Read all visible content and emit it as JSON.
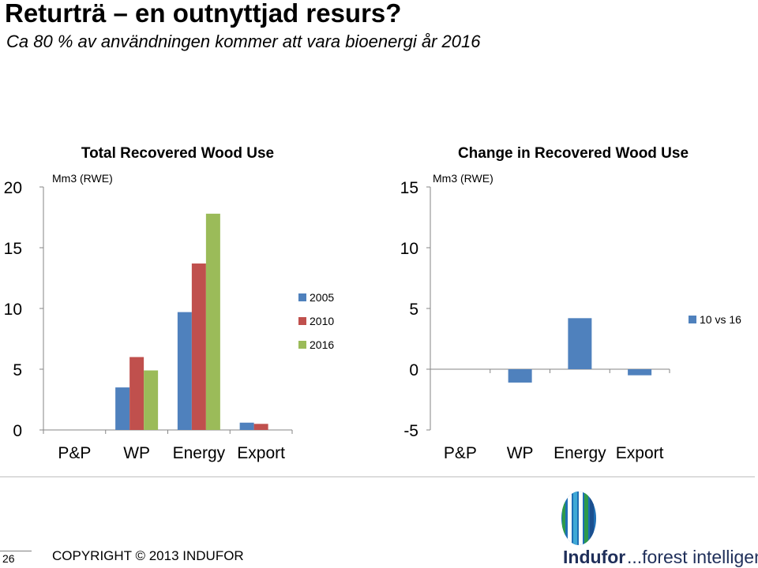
{
  "page": {
    "title": "Returträ – en outnyttjad resurs?",
    "subtitle": "Ca 80 % av användningen kommer att vara bioenergi år 2016"
  },
  "chart_data": [
    {
      "type": "bar",
      "title": "Total Recovered Wood Use",
      "unit_label": "Mm3 (RWE)",
      "categories": [
        "P&P",
        "WP",
        "Energy",
        "Export"
      ],
      "series": [
        {
          "name": "2005",
          "color": "#4f81bd",
          "values": [
            0,
            3.5,
            9.7,
            0.6
          ]
        },
        {
          "name": "2010",
          "color": "#c0504d",
          "values": [
            0,
            6.0,
            13.7,
            0.5
          ]
        },
        {
          "name": "2016",
          "color": "#9bbb59",
          "values": [
            0,
            4.9,
            17.8,
            0
          ]
        }
      ],
      "ylim": [
        0,
        20
      ],
      "yticks": [
        "0",
        "5",
        "10",
        "15",
        "20"
      ],
      "legend": "right"
    },
    {
      "type": "bar",
      "title": "Change in Recovered Wood Use",
      "unit_label": "Mm3 (RWE)",
      "categories": [
        "P&P",
        "WP",
        "Energy",
        "Export"
      ],
      "series": [
        {
          "name": "10 vs 16",
          "color": "#4f81bd",
          "values": [
            0,
            -1.1,
            4.2,
            -0.5
          ]
        }
      ],
      "ylim": [
        -5,
        15
      ],
      "yticks": [
        "-5",
        "0",
        "5",
        "10",
        "15"
      ],
      "legend": "right"
    }
  ],
  "footer": {
    "page_number": "26",
    "copyright": "COPYRIGHT © 2013 INDUFOR",
    "brand": "Indufor",
    "tagline": "...forest intelligence"
  }
}
